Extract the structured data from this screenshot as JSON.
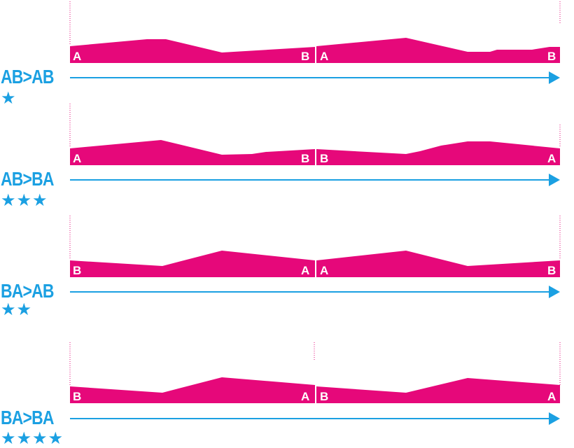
{
  "colors": {
    "profile": "#e6087a",
    "accent": "#1ba0e2",
    "text_on_profile": "#ffffff"
  },
  "rows": [
    {
      "route": "AB>AB",
      "rating": "★",
      "start": "A",
      "mid_left": "B",
      "mid_right": "A",
      "end": "B"
    },
    {
      "route": "AB>BA",
      "rating": "★★★",
      "start": "A",
      "mid_left": "B",
      "mid_right": "B",
      "end": "A"
    },
    {
      "route": "BA>AB",
      "rating": "★★",
      "start": "B",
      "mid_left": "A",
      "mid_right": "A",
      "end": "B"
    },
    {
      "route": "BA>BA",
      "rating": "★★★★",
      "start": "B",
      "mid_left": "A",
      "mid_right": "B",
      "end": "A"
    }
  ],
  "icons": {
    "direction": "right-arrow-icon",
    "rating": "star-icon"
  }
}
